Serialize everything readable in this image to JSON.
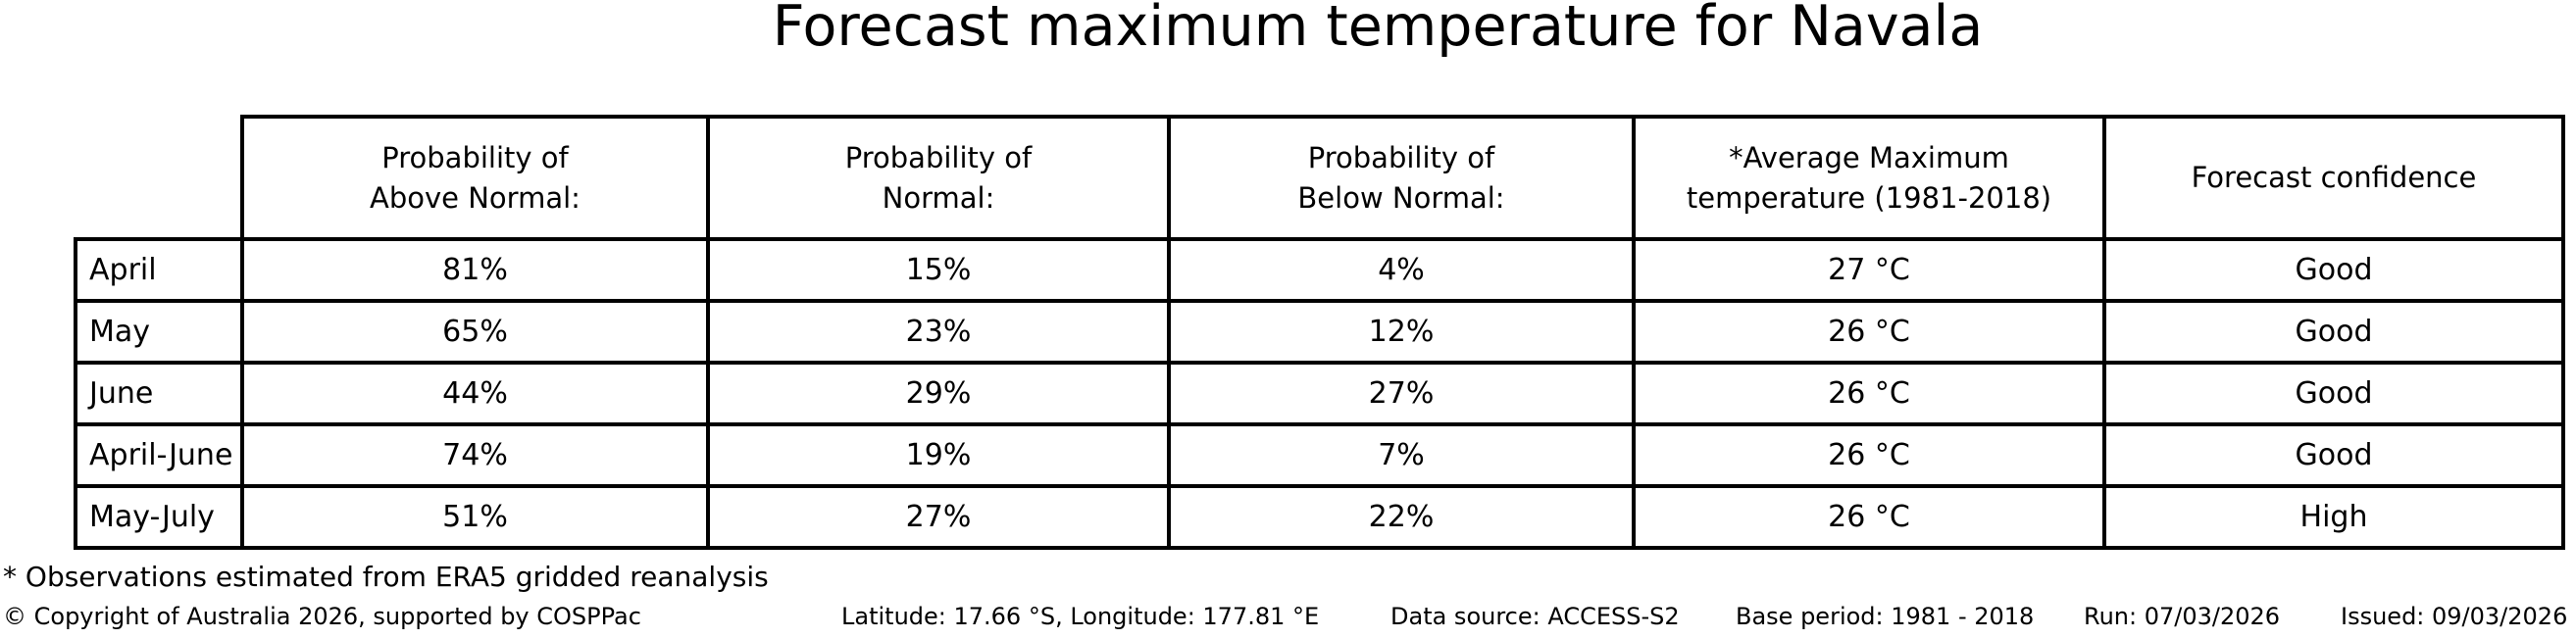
{
  "title": "Forecast maximum temperature for Navala",
  "chart_data": {
    "type": "table",
    "title": "Forecast maximum temperature for Navala",
    "columns": [
      "",
      "Probability of\nAbove Normal:",
      "Probability of\nNormal:",
      "Probability of\nBelow Normal:",
      "*Average Maximum\ntemperature (1981-2018)",
      "Forecast confidence"
    ],
    "rows": [
      [
        "April",
        "81%",
        "15%",
        "4%",
        "27 °C",
        "Good"
      ],
      [
        "May",
        "65%",
        "23%",
        "12%",
        "26 °C",
        "Good"
      ],
      [
        "June",
        "44%",
        "29%",
        "27%",
        "26 °C",
        "Good"
      ],
      [
        "April-June",
        "74%",
        "19%",
        "7%",
        "26 °C",
        "Good"
      ],
      [
        "May-July",
        "51%",
        "27%",
        "22%",
        "26 °C",
        "High"
      ]
    ],
    "layout_hints": {
      "header_position": "top",
      "row_labels_column": true,
      "grid": "all-borders",
      "border_color": "#000000",
      "background": "#ffffff"
    }
  },
  "footnote": "* Observations estimated from ERA5 gridded reanalysis",
  "footer": {
    "copyright": "© Copyright of Australia 2026, supported by COSPPac",
    "location": "Latitude: 17.66 °S, Longitude: 177.81 °E",
    "data_source": "Data source: ACCESS-S2",
    "base_period": "Base period: 1981 - 2018",
    "run": "Run: 07/03/2026",
    "issued": "Issued: 09/03/2026"
  },
  "colors": {
    "text": "#000000",
    "background": "#ffffff",
    "table_border": "#000000"
  }
}
